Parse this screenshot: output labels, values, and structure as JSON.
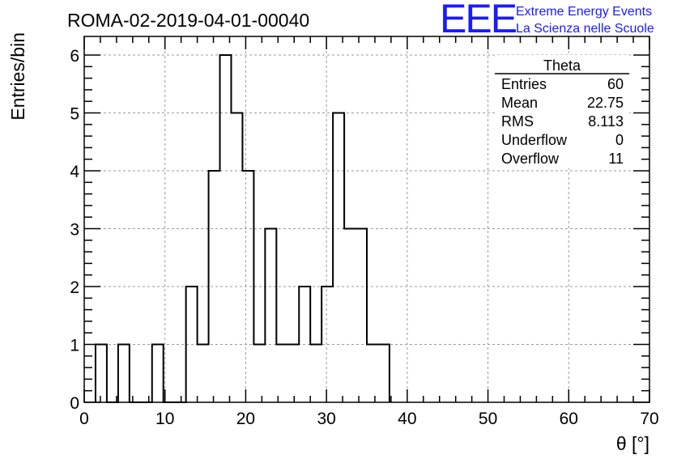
{
  "chart_data": {
    "type": "bar",
    "title": "ROMA-02-2019-04-01-00040",
    "xlabel": "θ [°]",
    "ylabel": "Entries/bin",
    "xlim": [
      0,
      70
    ],
    "ylim": [
      0,
      6.3
    ],
    "grid": true,
    "bin_width": 1.4,
    "x_ticks": [
      "0",
      "10",
      "20",
      "30",
      "40",
      "50",
      "60",
      "70"
    ],
    "y_ticks": [
      "0",
      "1",
      "2",
      "3",
      "4",
      "5",
      "6"
    ],
    "bins": [
      {
        "x0": 1.4,
        "value": 1
      },
      {
        "x0": 2.8,
        "value": 0
      },
      {
        "x0": 4.2,
        "value": 1
      },
      {
        "x0": 5.6,
        "value": 0
      },
      {
        "x0": 7.0,
        "value": 0
      },
      {
        "x0": 8.4,
        "value": 1
      },
      {
        "x0": 9.8,
        "value": 0
      },
      {
        "x0": 11.2,
        "value": 0
      },
      {
        "x0": 12.6,
        "value": 2
      },
      {
        "x0": 14.0,
        "value": 1
      },
      {
        "x0": 15.4,
        "value": 4
      },
      {
        "x0": 16.8,
        "value": 6
      },
      {
        "x0": 18.2,
        "value": 5
      },
      {
        "x0": 19.6,
        "value": 4
      },
      {
        "x0": 21.0,
        "value": 1
      },
      {
        "x0": 22.4,
        "value": 3
      },
      {
        "x0": 23.8,
        "value": 1
      },
      {
        "x0": 25.2,
        "value": 1
      },
      {
        "x0": 26.6,
        "value": 2
      },
      {
        "x0": 28.0,
        "value": 1
      },
      {
        "x0": 29.4,
        "value": 2
      },
      {
        "x0": 30.8,
        "value": 5
      },
      {
        "x0": 32.2,
        "value": 3
      },
      {
        "x0": 33.6,
        "value": 3
      },
      {
        "x0": 35.0,
        "value": 1
      },
      {
        "x0": 36.4,
        "value": 1
      }
    ],
    "stats_box": {
      "name": "Theta",
      "rows": [
        {
          "label": "Entries",
          "value": "60"
        },
        {
          "label": "Mean",
          "value": "22.75"
        },
        {
          "label": "RMS",
          "value": "8.113"
        },
        {
          "label": "Underflow",
          "value": "0"
        },
        {
          "label": "Overflow",
          "value": "11"
        }
      ]
    }
  },
  "logo": {
    "letters": "EEE",
    "line1": "Extreme Energy Events",
    "line2": "La Scienza nelle Scuole",
    "color": "#1a1aff"
  }
}
